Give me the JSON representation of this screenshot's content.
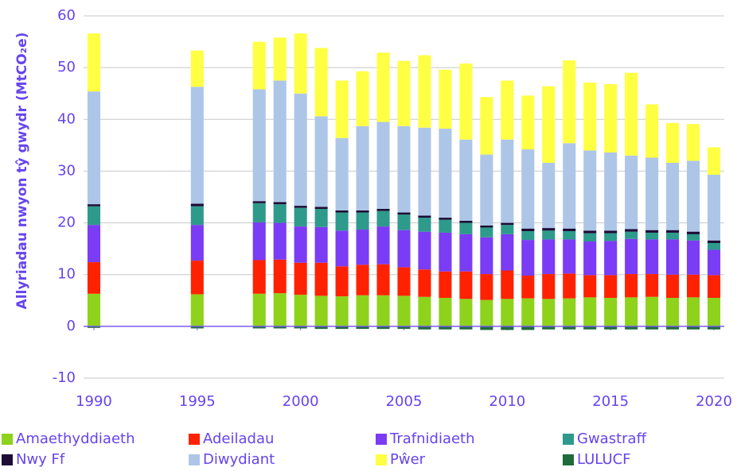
{
  "chart_data": {
    "type": "bar",
    "stacked": true,
    "ylabel": "Allyriadau nwyon tŷ gwydr (MtCO₂e)",
    "x": [
      1990,
      1995,
      1998,
      1999,
      2000,
      2001,
      2002,
      2003,
      2004,
      2005,
      2006,
      2007,
      2008,
      2009,
      2010,
      2011,
      2012,
      2013,
      2014,
      2015,
      2016,
      2017,
      2018,
      2019,
      2020
    ],
    "xlim": [
      1989.5,
      2020.5
    ],
    "xticks": [
      1990,
      1995,
      2000,
      2005,
      2010,
      2015,
      2020
    ],
    "ylim": [
      -10,
      60
    ],
    "yticks": [
      -10,
      0,
      10,
      20,
      30,
      40,
      50,
      60
    ],
    "grid": true,
    "legend": "bottom",
    "series": [
      {
        "name": "Amaethyddiaeth",
        "color": "#8ed21c",
        "values": [
          6.3,
          6.2,
          6.3,
          6.4,
          6.1,
          5.9,
          5.8,
          6.0,
          6.0,
          5.9,
          5.7,
          5.5,
          5.3,
          5.1,
          5.3,
          5.4,
          5.3,
          5.4,
          5.6,
          5.5,
          5.6,
          5.7,
          5.5,
          5.6,
          5.5
        ]
      },
      {
        "name": "Adeiladau",
        "color": "#ff2200",
        "values": [
          6.1,
          6.5,
          6.5,
          6.5,
          6.2,
          6.4,
          5.8,
          5.9,
          6.0,
          5.5,
          5.3,
          5.1,
          5.3,
          5.0,
          5.5,
          4.4,
          4.8,
          4.8,
          4.3,
          4.4,
          4.5,
          4.4,
          4.5,
          4.4,
          4.4
        ]
      },
      {
        "name": "Trafnidiaeth",
        "color": "#7a3cf5",
        "values": [
          7.2,
          6.9,
          7.3,
          7.1,
          7.0,
          6.9,
          6.9,
          6.8,
          7.3,
          7.2,
          7.3,
          7.5,
          7.2,
          7.1,
          7.0,
          6.9,
          6.7,
          6.6,
          6.5,
          6.6,
          6.8,
          6.7,
          6.8,
          6.6,
          4.9
        ]
      },
      {
        "name": "Gwastraff",
        "color": "#2e9a8c",
        "values": [
          3.6,
          3.6,
          3.7,
          3.6,
          3.6,
          3.5,
          3.5,
          3.3,
          3.0,
          3.0,
          2.7,
          2.5,
          2.2,
          1.9,
          1.8,
          1.7,
          1.7,
          1.6,
          1.6,
          1.5,
          1.4,
          1.3,
          1.3,
          1.2,
          1.3
        ]
      },
      {
        "name": "Nwy Ff",
        "color": "#1c0c36",
        "values": [
          0.4,
          0.5,
          0.4,
          0.4,
          0.4,
          0.4,
          0.4,
          0.4,
          0.4,
          0.4,
          0.4,
          0.4,
          0.4,
          0.4,
          0.4,
          0.5,
          0.5,
          0.5,
          0.5,
          0.5,
          0.5,
          0.5,
          0.5,
          0.5,
          0.5
        ]
      },
      {
        "name": "Diwydiant",
        "color": "#adc6e8",
        "values": [
          21.8,
          22.6,
          21.6,
          23.5,
          21.7,
          17.5,
          14.0,
          16.3,
          16.8,
          16.7,
          17.0,
          17.2,
          15.7,
          13.7,
          16.1,
          15.3,
          12.6,
          16.5,
          15.5,
          15.1,
          14.2,
          14.0,
          13.0,
          13.7,
          12.7
        ]
      },
      {
        "name": "Pŵer",
        "color": "#ffff44",
        "values": [
          11.2,
          7.0,
          9.2,
          8.3,
          11.6,
          13.2,
          11.1,
          10.6,
          13.4,
          12.6,
          14.0,
          11.4,
          14.7,
          11.1,
          11.4,
          10.4,
          14.8,
          16.0,
          13.1,
          13.2,
          16.0,
          10.3,
          7.7,
          7.1,
          5.3
        ]
      },
      {
        "name": "LULUCF",
        "color": "#1f6b3a",
        "values": [
          -0.3,
          -0.4,
          -0.4,
          -0.4,
          -0.4,
          -0.5,
          -0.5,
          -0.5,
          -0.5,
          -0.5,
          -0.6,
          -0.6,
          -0.6,
          -0.7,
          -0.7,
          -0.7,
          -0.6,
          -0.6,
          -0.6,
          -0.6,
          -0.6,
          -0.6,
          -0.6,
          -0.6,
          -0.6
        ]
      }
    ]
  }
}
